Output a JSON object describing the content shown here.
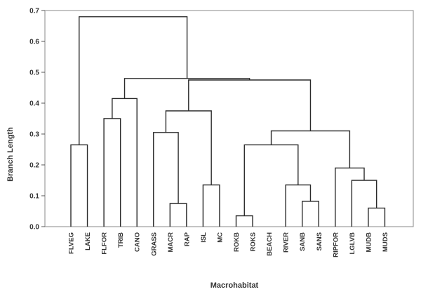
{
  "chart_data": {
    "type": "dendrogram",
    "xlabel": "Macrohabitat",
    "ylabel": "Branch Length",
    "ylim": [
      0,
      0.7
    ],
    "yticks": [
      "0.0",
      "0.1",
      "0.2",
      "0.3",
      "0.4",
      "0.5",
      "0.6",
      "0.7"
    ],
    "grid": false,
    "leaves": [
      "FLVEG",
      "LAKE",
      "FLFOR",
      "TRIB",
      "CANO",
      "GRASS",
      "MACR",
      "RAP",
      "ISL",
      "MC",
      "ROKB",
      "ROKS",
      "BEACH",
      "RIVER",
      "SANB",
      "SANS",
      "RIPFOR",
      "LGLVB",
      "MUDB",
      "MUDS"
    ],
    "merges": [
      {
        "left": 10,
        "right": 11,
        "height": 0.035
      },
      {
        "left": 18,
        "right": 19,
        "height": 0.06
      },
      {
        "left": 6,
        "right": 7,
        "height": 0.075
      },
      {
        "left": 14,
        "right": 15,
        "height": 0.082
      },
      {
        "left": 8,
        "right": 9,
        "height": 0.135
      },
      {
        "left": 13,
        "right": 23,
        "height": 0.135
      },
      {
        "left": 17,
        "right": 21,
        "height": 0.15
      },
      {
        "left": 16,
        "right": 26,
        "height": 0.19
      },
      {
        "left": 0,
        "right": 1,
        "height": 0.265
      },
      {
        "left": 20,
        "right": 25,
        "height": 0.265
      },
      {
        "left": 5,
        "right": 22,
        "height": 0.305
      },
      {
        "left": 29,
        "right": 27,
        "height": 0.31
      },
      {
        "left": 2,
        "right": 3,
        "height": 0.35
      },
      {
        "left": 30,
        "right": 24,
        "height": 0.375
      },
      {
        "left": 32,
        "right": 4,
        "height": 0.415
      },
      {
        "left": 33,
        "right": 31,
        "height": 0.475
      },
      {
        "left": 34,
        "right": 35,
        "height": 0.48
      },
      {
        "left": 28,
        "right": 36,
        "height": 0.68
      }
    ]
  }
}
